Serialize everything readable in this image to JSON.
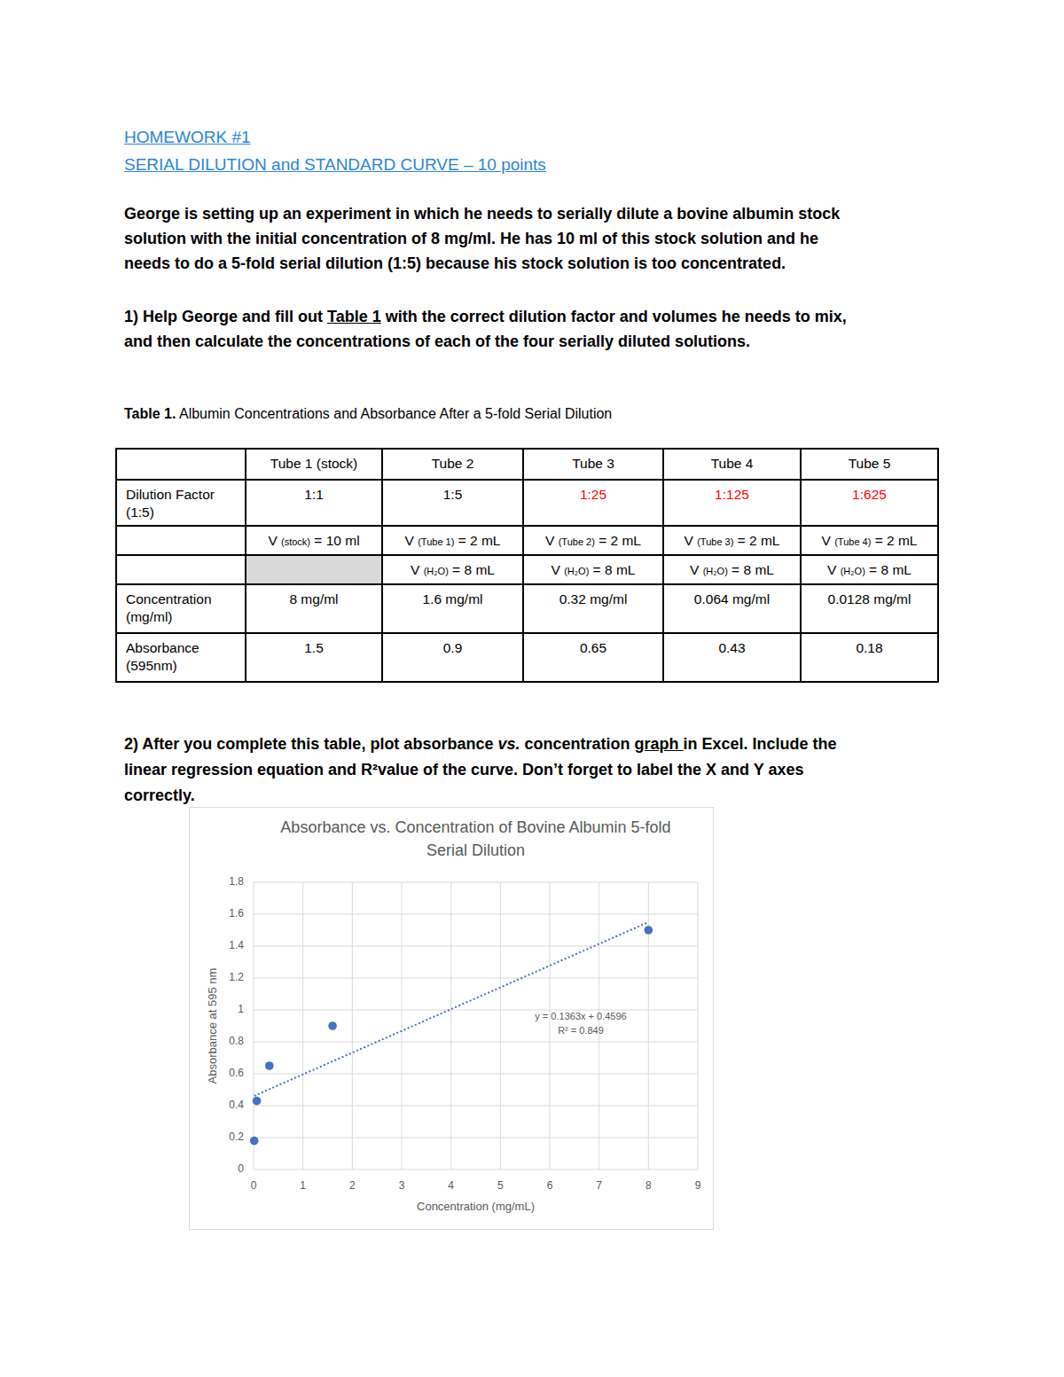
{
  "header": {
    "title": "HOMEWORK #1",
    "subtitle": "SERIAL DILUTION and STANDARD CURVE – 10 points"
  },
  "intro": [
    "George is setting up an experiment in which he needs to serially dilute a bovine albumin stock",
    "solution with the initial concentration of 8 mg/ml. He has 10 ml of this stock solution and he",
    "needs to do a 5-fold serial dilution (1:5) because his stock solution is too concentrated."
  ],
  "question_1": [
    [
      "1) Help George and fill out ",
      "Table 1",
      " with the correct dilution factor and volumes he needs to mix,"
    ],
    [
      "and then calculate the concentrations of each of the four serially diluted solutions."
    ]
  ],
  "table": {
    "caption_label": "Table 1.",
    "caption": " Albumin Concentrations and Absorbance After a 5-fold Serial Dilution",
    "columns": [
      null,
      "Tube 1 (stock)",
      "Tube 2",
      "Tube 3",
      "Tube 4",
      "Tube 5"
    ],
    "rows": [
      [
        "Dilution Factor (1:5)",
        "1:1",
        "1:5",
        "1:25",
        "1:125",
        "1:625"
      ],
      [
        null,
        "V (stock) = 10 ml",
        "V (Tube 1) = 2 mL",
        "V (Tube 2) = 2 mL",
        "V (Tube 3) = 2 mL",
        "V (Tube 4) = 2 mL"
      ],
      [
        null,
        null,
        "V (H₂O) = 8 mL",
        "V (H₂O) = 8 mL",
        "V (H₂O) = 8 mL",
        "V (H₂O) = 8 mL"
      ],
      [
        "Concentration (mg/ml)",
        "8 mg/ml",
        "1.6 mg/ml",
        "0.32 mg/ml",
        "0.064 mg/ml",
        "0.0128 mg/ml"
      ],
      [
        "Absorbance (595nm)",
        1.5,
        0.9,
        0.65,
        0.43,
        0.18
      ]
    ]
  },
  "question_2": [
    [
      "2) After you complete this table, plot absorbance ",
      "vs.",
      " concentration ",
      "graph ",
      "in Excel. Include the"
    ],
    [
      "linear regression equation and R²value of the curve. Don’t forget to label the X and Y axes"
    ],
    [
      "correctly."
    ]
  ],
  "chart_data": {
    "type": "scatter",
    "title": "Absorbance vs. Concentration of Bovine Albumin 5-fold Serial Dilution",
    "x_label": "Concentration (mg/mL)",
    "y_label": "Absorbance at 595 nm",
    "x": [
      8,
      1.6,
      0.32,
      0.064,
      0.0128
    ],
    "values": [
      1.5,
      0.9,
      0.65,
      0.43,
      0.18
    ],
    "color": "#4472c4",
    "marker": "circle",
    "xlim": [
      0,
      9
    ],
    "xticks": [
      0,
      1,
      2,
      3,
      4,
      5,
      6,
      7,
      8,
      9
    ],
    "ylim": [
      0,
      1.8
    ],
    "yticks": [
      0,
      0.2,
      0.4,
      0.6,
      0.8,
      1,
      1.2,
      1.4,
      1.6,
      1.8
    ],
    "grid": true,
    "trendline": {
      "slope": 0.1363,
      "intercept": 0.4596,
      "equation": "y = 0.1363x + 0.4596",
      "r_squared_label": "R² = 0.849",
      "line_style": "dotted"
    }
  }
}
